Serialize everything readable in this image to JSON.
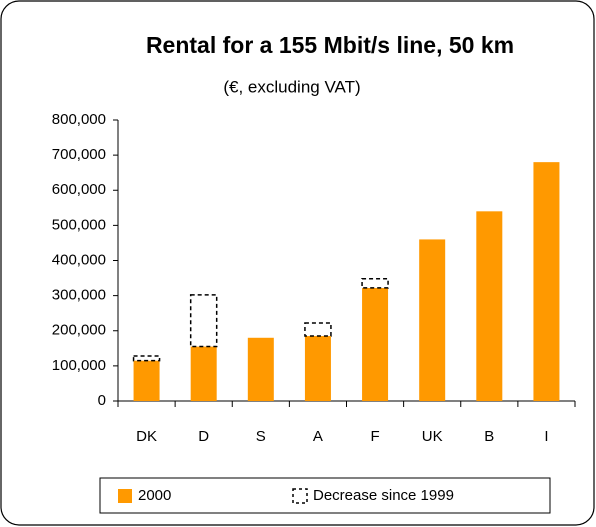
{
  "chart_data": {
    "type": "stacked_bar",
    "title": "Rental for a 155 Mbit/s line, 50 km",
    "subtitle": "(€, excluding VAT)",
    "categories": [
      "DK",
      "D",
      "S",
      "A",
      "F",
      "UK",
      "B",
      "I"
    ],
    "series": [
      {
        "name": "2000",
        "color": "#ff9900",
        "values": [
          115000,
          155000,
          180000,
          185000,
          322000,
          460000,
          540000,
          680000
        ]
      },
      {
        "name": "Decrease since 1999",
        "color": "#ffffff",
        "values": [
          13000,
          147000,
          null,
          37000,
          26000,
          null,
          null,
          null
        ]
      }
    ],
    "ylim": [
      0,
      800000
    ],
    "yticks": [
      0,
      {
        "value": 100000,
        "label": "100,000"
      },
      {
        "value": 200000,
        "label": "200,000"
      },
      {
        "value": 300000,
        "label": "300,000"
      },
      {
        "value": 400000,
        "label": "400,000"
      },
      {
        "value": 500000,
        "label": "500,000"
      },
      {
        "value": 600000,
        "label": "600,000"
      },
      {
        "value": 700000,
        "label": "700,000"
      },
      {
        "value": 800000,
        "label": "800,000"
      }
    ],
    "legend": "bottom"
  }
}
